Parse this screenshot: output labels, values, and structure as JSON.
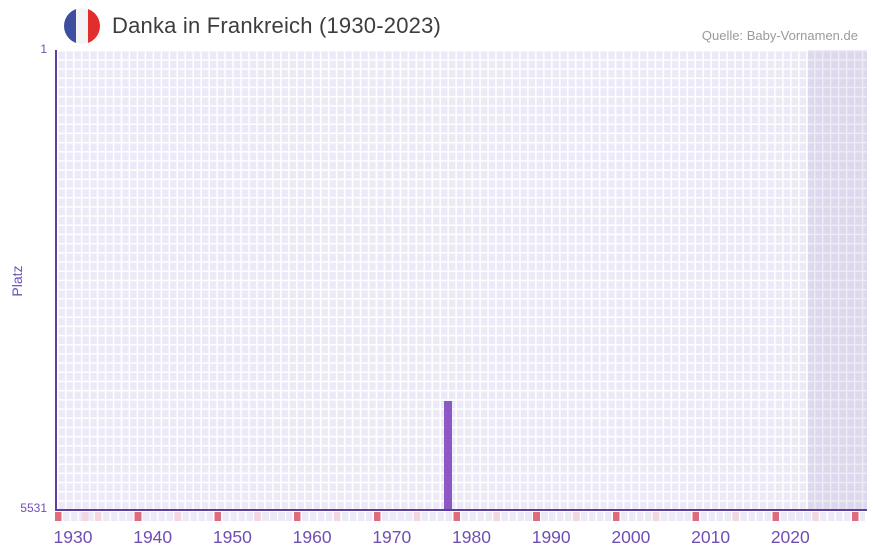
{
  "header": {
    "title": "Danka in Frankreich (1930-2023)",
    "source": "Quelle: Baby-Vornamen.de",
    "flag_country": "france"
  },
  "chart_data": {
    "type": "bar",
    "title": "Danka in Frankreich (1930-2023)",
    "xlabel": "",
    "ylabel": "Platz",
    "x_range": [
      1930,
      2023
    ],
    "x_ticks": [
      1930,
      1940,
      1950,
      1960,
      1970,
      1980,
      1990,
      2000,
      2010,
      2020
    ],
    "y_axis": {
      "top": 1,
      "bottom": 5531,
      "inverted": true,
      "tick_labels": [
        "1",
        "5531"
      ]
    },
    "series": [
      {
        "name": "Platz von Danka in Frankreich",
        "points": [
          {
            "year": 1977,
            "platz": 4220
          }
        ]
      }
    ],
    "legend": "none",
    "grid": "lavender cell tiles, white gaps; darker highlight band at right edge of plot",
    "below_axis_markers": "rose cell every 10th column, light pink cell every 10th column offset by 5"
  },
  "colors": {
    "title_text": "#3d3d3d",
    "source_text": "#9a9a9a",
    "axis_line": "#5c3f9e",
    "tick_text": "#6f4fb5",
    "bar": "#8c58c6",
    "grid_cell": "#edeaf8",
    "band_overlay": "rgba(118,100,160,0.13)",
    "marker_red": "#df6c7d",
    "marker_pink": "#f2d7e1",
    "flag_blue": "#3d4da0",
    "flag_white": "#f4f4f6",
    "flag_red": "#e22d2d"
  }
}
